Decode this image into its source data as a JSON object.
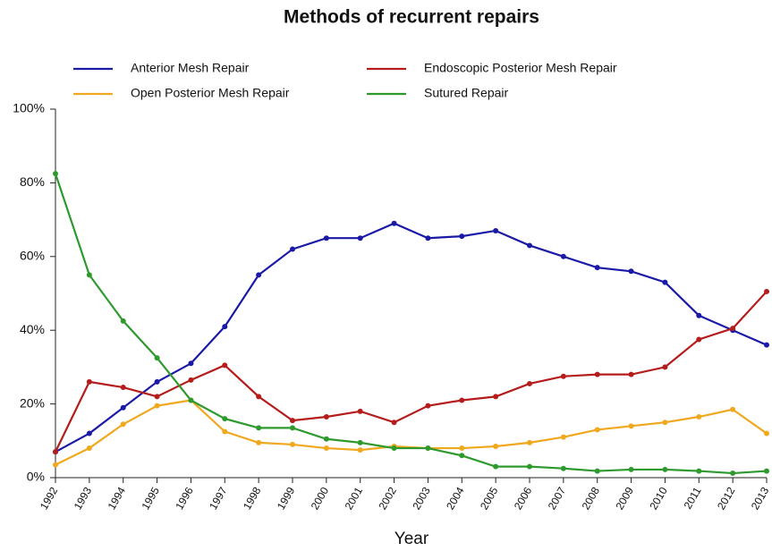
{
  "chart_data": {
    "type": "line",
    "title": "Methods of recurrent repairs",
    "x_label": "Year",
    "x": [
      1992,
      1993,
      1994,
      1995,
      1996,
      1997,
      1998,
      1999,
      2000,
      2001,
      2002,
      2003,
      2004,
      2005,
      2006,
      2007,
      2008,
      2009,
      2010,
      2011,
      2012,
      2013
    ],
    "xlim": [
      1992,
      2013
    ],
    "xticks": [
      1992,
      1993,
      1994,
      1995,
      1996,
      1997,
      1998,
      1999,
      2000,
      2001,
      2002,
      2003,
      2004,
      2005,
      2006,
      2007,
      2008,
      2009,
      2010,
      2011,
      2012,
      2013
    ],
    "ylim": [
      0,
      100
    ],
    "yticks": [
      {
        "value": 0,
        "label": "0%"
      },
      {
        "value": 20,
        "label": "20%"
      },
      {
        "value": 40,
        "label": "40%"
      },
      {
        "value": 60,
        "label": "60%"
      },
      {
        "value": 80,
        "label": "80%"
      },
      {
        "value": 100,
        "label": "100%"
      }
    ],
    "series": [
      {
        "name": "Anterior Mesh Repair",
        "color": "#1a1aa6",
        "values": [
          7,
          12,
          19,
          26,
          31,
          41,
          55,
          62,
          65,
          65,
          69,
          65,
          65.5,
          67,
          63,
          60,
          57,
          56,
          53,
          44,
          40,
          36
        ]
      },
      {
        "name": "Endoscopic Posterior Mesh Repair",
        "color": "#b51c1c",
        "values": [
          7,
          26,
          24.5,
          22,
          26.5,
          30.5,
          22,
          15.5,
          16.5,
          18,
          15,
          19.5,
          21,
          22,
          25.5,
          27.5,
          28,
          28,
          30,
          37.5,
          40.5,
          50.5
        ]
      },
      {
        "name": "Open Posterior Mesh Repair",
        "color": "#f0a81e",
        "values": [
          3.5,
          8,
          14.5,
          19.5,
          21,
          12.5,
          9.5,
          9,
          8,
          7.5,
          8.5,
          8,
          8,
          8.5,
          9.5,
          11,
          13,
          14,
          15,
          16.5,
          18.5,
          12
        ]
      },
      {
        "name": "Sutured Repair",
        "color": "#2e9a2e",
        "values": [
          82.5,
          55,
          42.5,
          32.5,
          21,
          16,
          13.5,
          13.5,
          10.5,
          9.5,
          8,
          8,
          6,
          3,
          3,
          2.5,
          1.8,
          2.2,
          2.2,
          1.8,
          1.2,
          1.8
        ]
      }
    ]
  }
}
